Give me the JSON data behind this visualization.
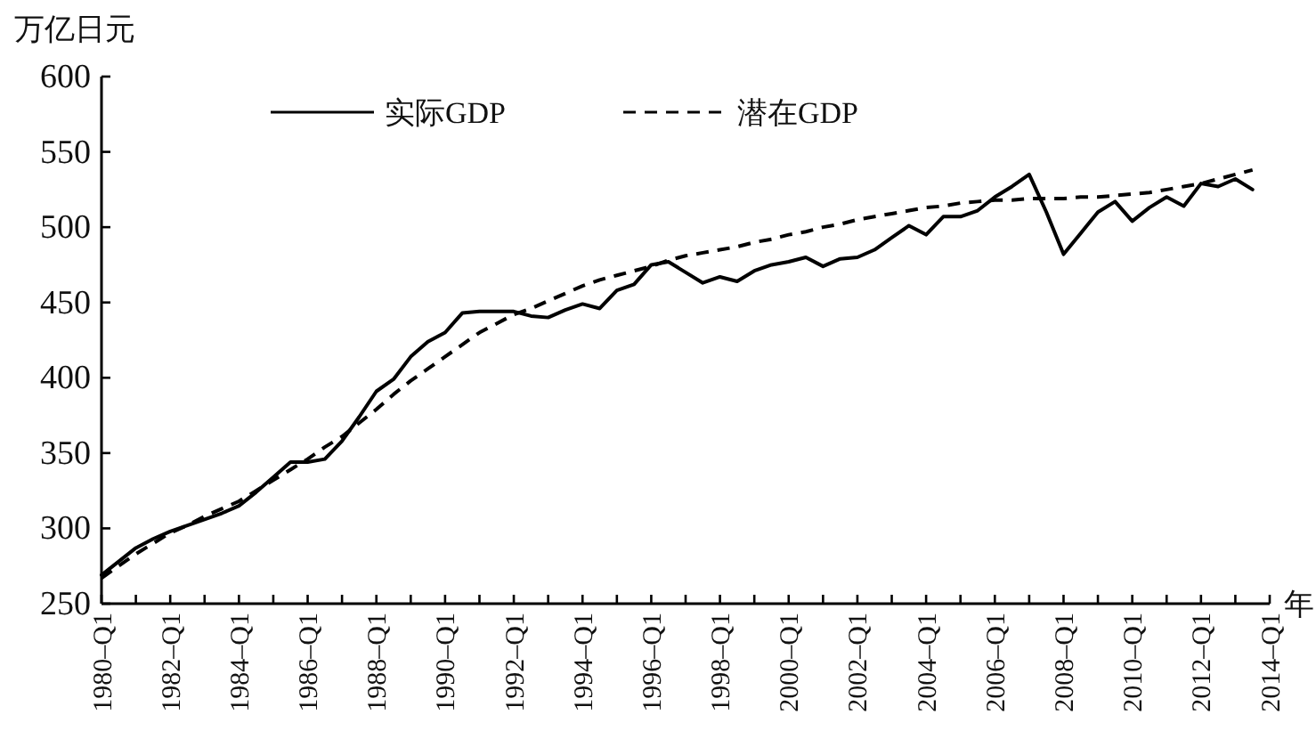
{
  "chart_data": {
    "type": "line",
    "ylabel": "万亿日元",
    "xlabel": "年",
    "ylim": [
      250,
      600
    ],
    "yticks": [
      250,
      300,
      350,
      400,
      450,
      500,
      550,
      600
    ],
    "categories": [
      "1980–Q1",
      null,
      null,
      null,
      "1982–Q1",
      null,
      null,
      null,
      "1984–Q1",
      null,
      null,
      null,
      "1986–Q1",
      null,
      null,
      null,
      "1988–Q1",
      null,
      null,
      null,
      "1990–Q1",
      null,
      null,
      null,
      "1992–Q1",
      null,
      null,
      null,
      "1994–Q1",
      null,
      null,
      null,
      "1996–Q1",
      null,
      null,
      null,
      "1998–Q1",
      null,
      null,
      null,
      "2000–Q1",
      null,
      null,
      null,
      "2002–Q1",
      null,
      null,
      null,
      "2004–Q1",
      null,
      null,
      null,
      "2006–Q1",
      null,
      null,
      null,
      "2008–Q1",
      null,
      null,
      null,
      "2010–Q1",
      null,
      null,
      null,
      "2012–Q1",
      null,
      null,
      null,
      "2014–Q1"
    ],
    "legend": "top",
    "grid": false,
    "series": [
      {
        "name": "实际GDP",
        "color": "#000000",
        "line_style": "solid",
        "values": [
          269,
          278,
          287,
          293,
          298,
          302,
          306,
          310,
          315,
          324,
          334,
          344,
          344,
          346,
          358,
          374,
          391,
          399,
          414,
          424,
          430,
          443,
          444,
          444,
          444,
          441,
          440,
          445,
          449,
          446,
          458,
          462,
          475,
          477,
          470,
          463,
          467,
          464,
          471,
          475,
          477,
          480,
          474,
          479,
          480,
          485,
          493,
          501,
          495,
          507,
          507,
          511,
          520,
          527,
          535,
          510,
          482,
          496,
          510,
          517,
          504,
          513,
          520,
          514,
          529,
          527,
          532,
          525,
          null
        ]
      },
      {
        "name": "潜在GDP",
        "color": "#000000",
        "line_style": "dashed",
        "values": [
          267,
          275,
          283,
          290,
          297,
          302,
          308,
          313,
          318,
          325,
          332,
          339,
          346,
          354,
          361,
          370,
          379,
          389,
          398,
          406,
          414,
          422,
          430,
          436,
          442,
          446,
          451,
          456,
          461,
          465,
          468,
          471,
          474,
          478,
          481,
          483,
          485,
          487,
          490,
          492,
          495,
          497,
          500,
          502,
          505,
          507,
          509,
          511,
          513,
          514,
          516,
          517,
          518,
          518,
          519,
          519,
          519,
          520,
          520,
          521,
          522,
          523,
          525,
          527,
          529,
          532,
          535,
          538,
          null
        ]
      }
    ]
  }
}
